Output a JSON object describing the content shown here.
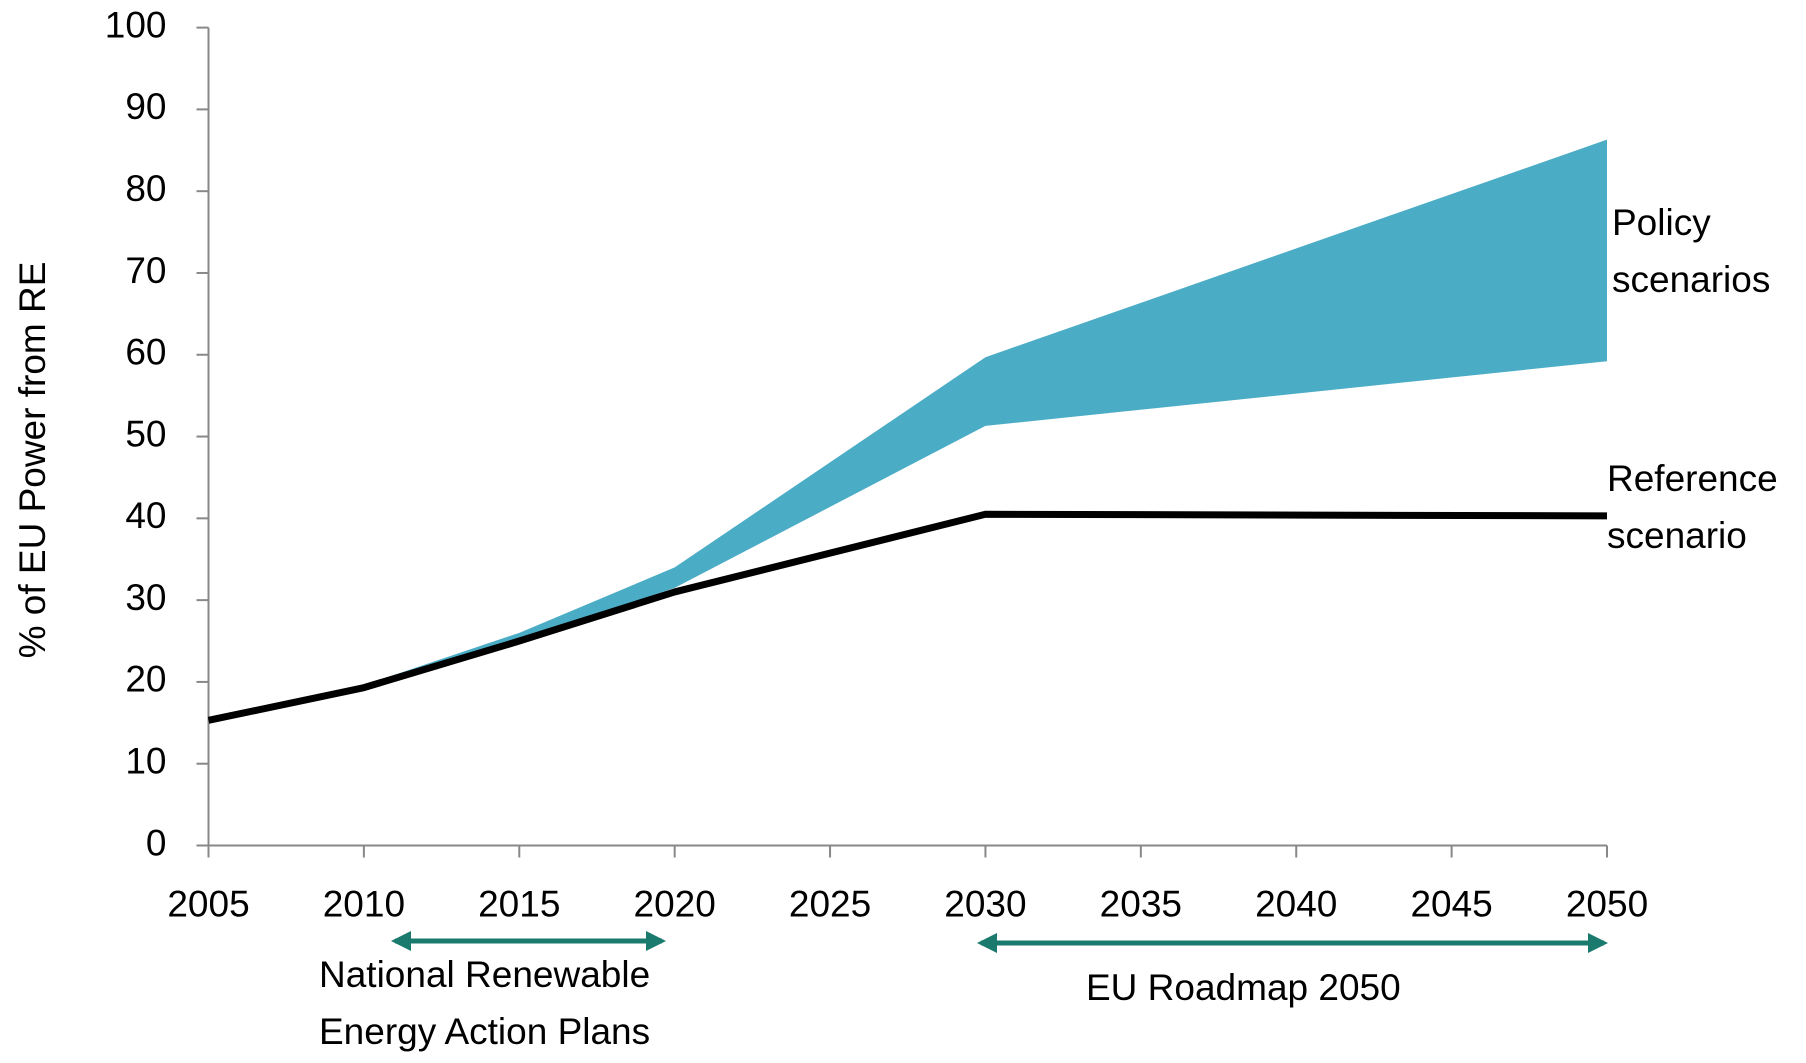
{
  "chart_data": {
    "type": "line",
    "y_label": "% of EU Power from RE",
    "x": [
      2005,
      2010,
      2015,
      2020,
      2030,
      2050
    ],
    "series": [
      {
        "color": "#000000",
        "values": [
          15.3,
          19.3,
          25,
          31,
          40.5,
          40.3
        ]
      }
    ],
    "bands": [
      {
        "color": "#4bacc6",
        "lower": [
          15.3,
          19.2,
          25,
          31.5,
          51.3,
          59.2
        ],
        "upper": [
          15.6,
          19.6,
          26,
          34,
          59.7,
          86.3
        ]
      }
    ],
    "xlim": [
      2005,
      2050
    ],
    "xticks": [
      2005,
      2010,
      2015,
      2020,
      2025,
      2030,
      2035,
      2040,
      2045,
      2050
    ],
    "ylim": [
      0,
      100
    ],
    "yticks": [
      0,
      10,
      20,
      30,
      40,
      50,
      60,
      70,
      80,
      90,
      100
    ],
    "grid": false,
    "annotations": [
      {
        "lines": [
          "Policy",
          "scenarios"
        ]
      },
      {
        "lines": [
          "Reference",
          "scenario"
        ]
      },
      {
        "lines": [
          "National Renewable",
          "Energy Action Plans"
        ]
      },
      {
        "lines": [
          "EU Roadmap 2050"
        ]
      }
    ]
  }
}
